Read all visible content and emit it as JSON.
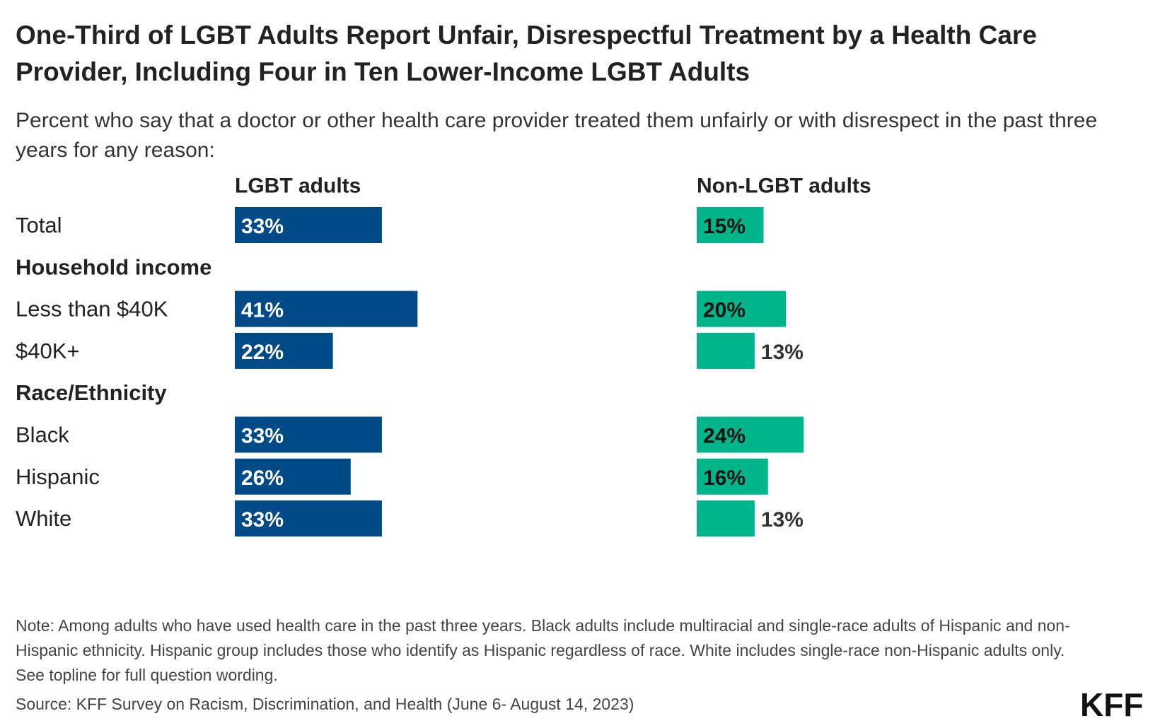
{
  "title": "One-Third of LGBT Adults Report Unfair, Disrespectful Treatment by a Health Care Provider, Including Four in Ten Lower-Income LGBT Adults",
  "subtitle": "Percent who say that a doctor or other health care provider treated them unfairly or with disrespect in the past three years for any reason:",
  "note": "Note: Among adults who have used health care in the past three years. Black adults include multiracial and single-race adults of Hispanic and non-Hispanic ethnicity. Hispanic group includes those who identify as Hispanic regardless of race. White includes single-race non-Hispanic adults only. See topline for full question wording.",
  "source": "Source: KFF Survey on Racism, Discrimination, and Health (June 6- August 14, 2023)",
  "logo": "KFF",
  "colors": {
    "lgbt": "#004A87",
    "non_lgbt": "#00B58A",
    "label_inside_lgbt": "#ffffff",
    "label_inside_non_lgbt": "#111111",
    "label_outside": "#333333"
  },
  "chart_data": {
    "type": "bar",
    "orientation": "horizontal",
    "value_unit": "%",
    "rows": [
      {
        "label": "Total",
        "is_header": false
      },
      {
        "label": "Household income",
        "is_header": true
      },
      {
        "label": "Less than $40K",
        "is_header": false
      },
      {
        "label": "$40K+",
        "is_header": false
      },
      {
        "label": "Race/Ethnicity",
        "is_header": true
      },
      {
        "label": "Black",
        "is_header": false
      },
      {
        "label": "Hispanic",
        "is_header": false
      },
      {
        "label": "White",
        "is_header": false
      }
    ],
    "series": [
      {
        "name": "LGBT adults",
        "values": [
          33,
          null,
          41,
          22,
          null,
          33,
          26,
          33
        ]
      },
      {
        "name": "Non-LGBT adults",
        "values": [
          15,
          null,
          20,
          13,
          null,
          24,
          16,
          13
        ]
      }
    ],
    "xlim": [
      0,
      100
    ],
    "grid": false,
    "legend": "column headers"
  }
}
